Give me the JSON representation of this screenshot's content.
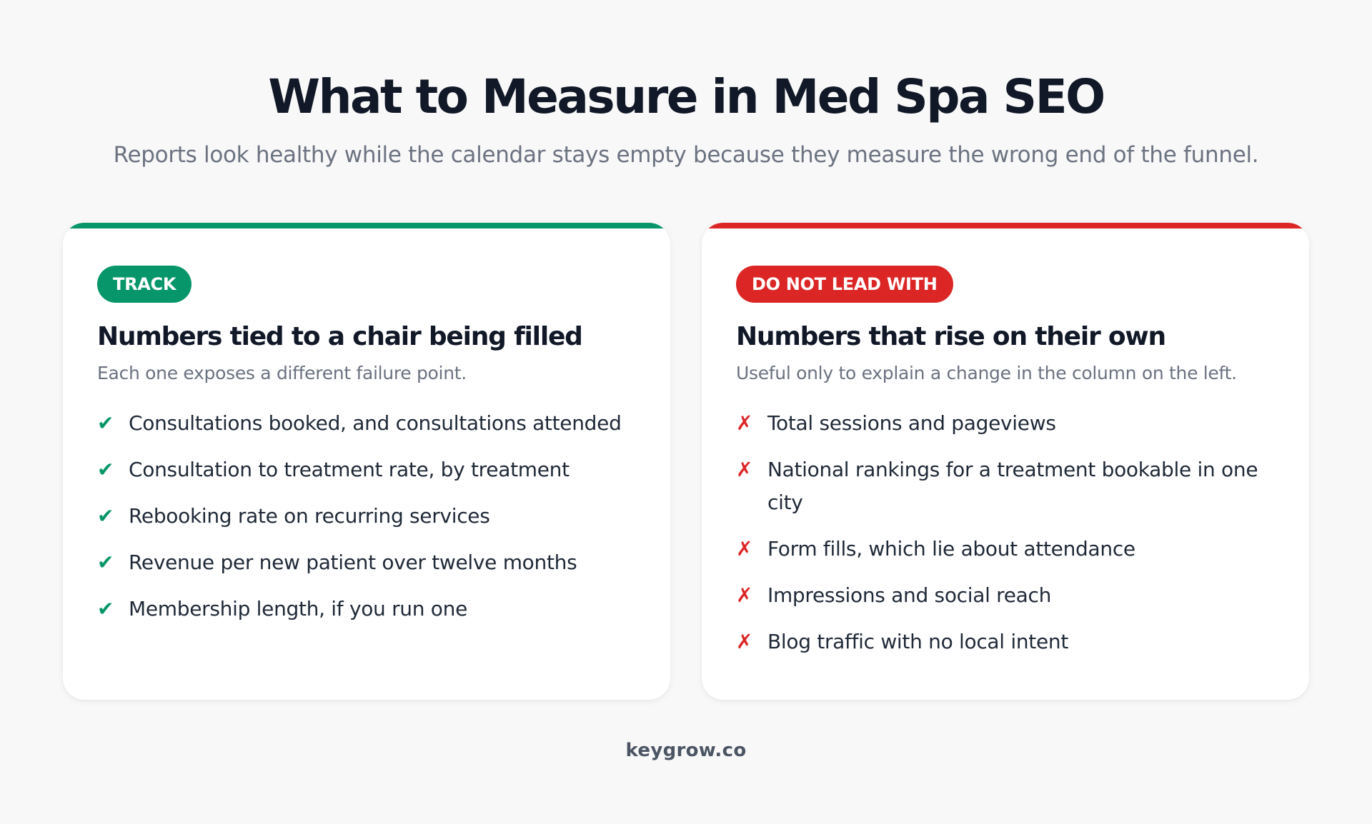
{
  "title": "What to Measure in Med Spa SEO",
  "subtitle": "Reports look healthy while the calendar stays empty because they measure the wrong end of the funnel.",
  "colors": {
    "track_accent": "#079669",
    "avoid_accent": "#dc2626",
    "heading": "#111827",
    "muted": "#6b7280"
  },
  "track": {
    "badge": "TRACK",
    "heading": "Numbers tied to a chair being filled",
    "subheading": "Each one exposes a different failure point.",
    "icon": "check-icon",
    "mark": "✔",
    "items": [
      "Consultations booked, and consultations attended",
      "Consultation to treatment rate, by treatment",
      "Rebooking rate on recurring services",
      "Revenue per new patient over twelve months",
      "Membership length, if you run one"
    ]
  },
  "avoid": {
    "badge": "DO NOT LEAD WITH",
    "heading": "Numbers that rise on their own",
    "subheading": "Useful only to explain a change in the column on the left.",
    "icon": "cross-icon",
    "mark": "✗",
    "items": [
      "Total sessions and pageviews",
      "National rankings for a treatment bookable in one city",
      "Form fills, which lie about attendance",
      "Impressions and social reach",
      "Blog traffic with no local intent"
    ]
  },
  "footer": "keygrow.co"
}
